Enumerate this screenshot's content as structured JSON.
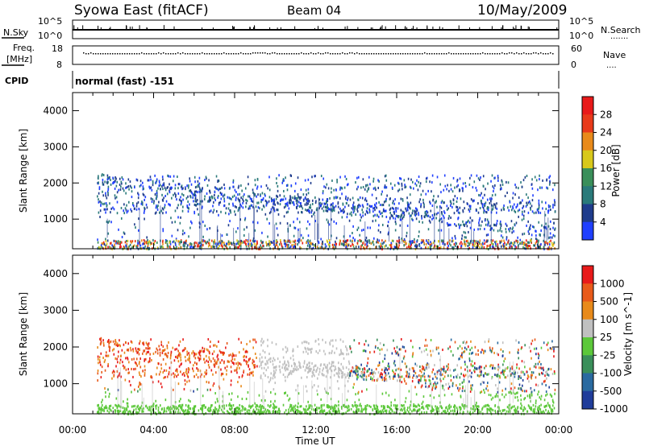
{
  "header": {
    "title": "Syowa East (fitACF)",
    "beam": "Beam 04",
    "date": "10/May/2009"
  },
  "nsky_panel": {
    "label": "N.Sky",
    "left_ticks": [
      "10^5",
      "10^0"
    ],
    "right_ticks": [
      "10^5",
      "10^0"
    ],
    "right_label": "N.Search",
    "right_legend": "......."
  },
  "freq_panel": {
    "label_line1": "Freq.",
    "label_line2": "[MHz]",
    "left_ticks": [
      "18",
      "8"
    ],
    "right_ticks": [
      "60",
      "0"
    ],
    "right_label": "Nave",
    "right_legend": "...."
  },
  "cpid_panel": {
    "label": "CPID",
    "text": "normal (fast) -151"
  },
  "chart_data": [
    {
      "type": "heatmap",
      "name": "power",
      "ylabel": "Slant Range [km]",
      "y_ticks": [
        1000,
        2000,
        3000,
        4000
      ],
      "ylim": [
        180,
        4500
      ],
      "colorbar_label": "Power [dB]",
      "colorbar_ticks": [
        "4",
        "8",
        "12",
        "16",
        "20",
        "24",
        "28"
      ],
      "colors": [
        "#1f3fff",
        "#1f3c8c",
        "#2a7a7a",
        "#3a8f5a",
        "#d8c81a",
        "#e88a1a",
        "#e83a1a",
        "#e81a1a"
      ]
    },
    {
      "type": "heatmap",
      "name": "velocity",
      "ylabel": "Slant Range [km]",
      "y_ticks": [
        1000,
        2000,
        3000,
        4000
      ],
      "ylim": [
        180,
        4500
      ],
      "colorbar_label": "Velocity [m s^-1]",
      "colorbar_ticks": [
        "1000",
        "500",
        "100",
        "25",
        "-25",
        "-100",
        "-500",
        "-1000"
      ],
      "colors": [
        "#1f3c9a",
        "#2a6aa0",
        "#3a8f5a",
        "#5cc83a",
        "#c0c0c0",
        "#e88a1a",
        "#e85a1a",
        "#e81a1a"
      ]
    }
  ],
  "x_axis": {
    "tick_labels": [
      "00:00",
      "04:00",
      "08:00",
      "12:00",
      "16:00",
      "20:00",
      "00:00"
    ],
    "label": "Time UT"
  }
}
